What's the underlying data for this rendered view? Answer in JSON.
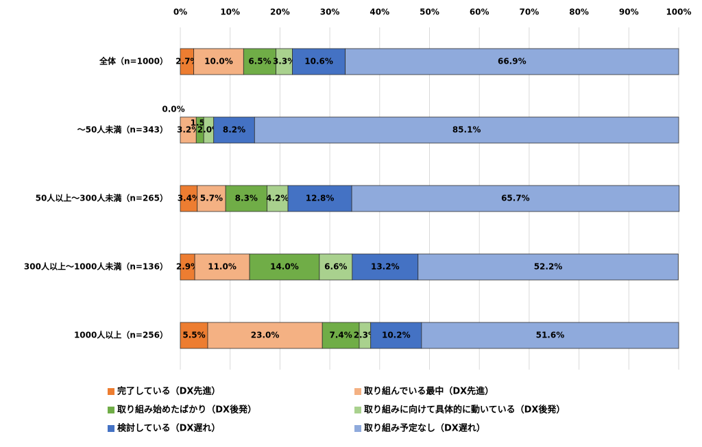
{
  "chart_data": {
    "type": "stacked-bar-horizontal",
    "categories": [
      "全体（n=1000）",
      "～50人未満（n=343）",
      "50人以上～300人未満（n=265）",
      "300人以上～1000人未満（n=136）",
      "1000人以上（n=256）"
    ],
    "series": [
      {
        "name": "完了している（DX先進）",
        "color": "#ed7d31",
        "values": [
          2.7,
          0.0,
          3.4,
          2.9,
          5.5
        ],
        "value_labels": [
          "2.7%",
          "0.0%",
          "3.4%",
          "2.9%",
          "5.5%"
        ]
      },
      {
        "name": "取り組んでいる最中（DX先進）",
        "color": "#f4b183",
        "values": [
          10.0,
          3.2,
          5.7,
          11.0,
          23.0
        ],
        "value_labels": [
          "10.0%",
          "3.2%",
          "5.7%",
          "11.0%",
          "23.0%"
        ]
      },
      {
        "name": "取り組み始めたばかり（DX後発）",
        "color": "#70ad47",
        "values": [
          6.5,
          1.5,
          8.3,
          14.0,
          7.4
        ],
        "value_labels": [
          "6.5%",
          "1.5%",
          "8.3%",
          "14.0%",
          "7.4%"
        ]
      },
      {
        "name": "取り組みに向けて具体的に動いている（DX後発）",
        "color": "#a9d18e",
        "values": [
          3.3,
          2.0,
          4.2,
          6.6,
          2.3
        ],
        "value_labels": [
          "3.3%",
          "2.0%",
          "4.2%",
          "6.6%",
          "2.3%"
        ]
      },
      {
        "name": "検討している（DX遅れ）",
        "color": "#4472c4",
        "values": [
          10.6,
          8.2,
          12.8,
          13.2,
          10.2
        ],
        "value_labels": [
          "10.6%",
          "8.2%",
          "12.8%",
          "13.2%",
          "10.2%"
        ]
      },
      {
        "name": "取り組み予定なし（DX遅れ）",
        "color": "#8faadc",
        "values": [
          66.9,
          85.1,
          65.7,
          52.2,
          51.6
        ],
        "value_labels": [
          "66.9%",
          "85.1%",
          "65.7%",
          "52.2%",
          "51.6%"
        ]
      }
    ],
    "xlim": [
      0,
      100
    ],
    "xticks": [
      {
        "value": 0,
        "label": "0%"
      },
      {
        "value": 10,
        "label": "10%"
      },
      {
        "value": 20,
        "label": "20%"
      },
      {
        "value": 30,
        "label": "30%"
      },
      {
        "value": 40,
        "label": "40%"
      },
      {
        "value": 50,
        "label": "50%"
      },
      {
        "value": 60,
        "label": "60%"
      },
      {
        "value": 70,
        "label": "70%"
      },
      {
        "value": 80,
        "label": "80%"
      },
      {
        "value": 90,
        "label": "90%"
      },
      {
        "value": 100,
        "label": "100%"
      }
    ],
    "grid": true,
    "legend": "bottom"
  }
}
